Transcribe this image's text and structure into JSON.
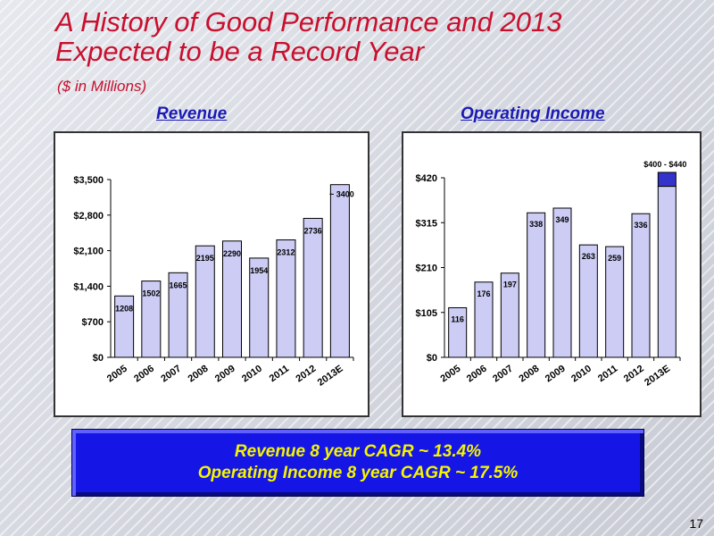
{
  "slide": {
    "title_line1": "A History of Good Performance and 2013",
    "title_line2": "Expected to be a Record Year",
    "subtitle": "($ in Millions)",
    "page_number": "17",
    "colors": {
      "title": "#c8102e",
      "panel_title": "#1a1ab5",
      "bar_fill": "#ccccf5",
      "bar_stroke": "#000000",
      "range_fill": "#3333cc",
      "cagr_background": "#1515e6",
      "cagr_text": "#f5f500"
    }
  },
  "cagr": {
    "line1": "Revenue  8 year CAGR ~  13.4%",
    "line2": "Operating Income 8 year CAGR ~ 17.5%"
  },
  "chart_data": [
    {
      "type": "bar",
      "title": "Revenue",
      "categories": [
        "2005",
        "2006",
        "2007",
        "2008",
        "2009",
        "2010",
        "2011",
        "2012",
        "2013E"
      ],
      "values": [
        1208,
        1502,
        1665,
        2195,
        2290,
        1954,
        2312,
        2736,
        3400
      ],
      "data_labels": [
        "1208",
        "1502",
        "1665",
        "2195",
        "2290",
        "1954",
        "2312",
        "2736",
        "~ 3400"
      ],
      "ylim": [
        0,
        3500
      ],
      "yticks": [
        0,
        700,
        1400,
        2100,
        2800,
        3500
      ],
      "ytick_labels": [
        "$0",
        "$700",
        "$1,400",
        "$2,100",
        "$2,800",
        "$3,500"
      ],
      "grid": false,
      "legend": "none"
    },
    {
      "type": "bar",
      "title": "Operating Income",
      "categories": [
        "2005",
        "2006",
        "2007",
        "2008",
        "2009",
        "2010",
        "2011",
        "2012",
        "2013E"
      ],
      "values": [
        116,
        176,
        197,
        338,
        349,
        263,
        259,
        336,
        400
      ],
      "range_2013E": [
        400,
        440
      ],
      "data_labels": [
        "116",
        "176",
        "197",
        "338",
        "349",
        "263",
        "259",
        "336",
        "$400 - $440"
      ],
      "ylim": [
        0,
        420
      ],
      "yticks": [
        0,
        105,
        210,
        315,
        420
      ],
      "ytick_labels": [
        "$0",
        "$105",
        "$210",
        "$315",
        "$420"
      ],
      "grid": false,
      "legend": "none"
    }
  ]
}
